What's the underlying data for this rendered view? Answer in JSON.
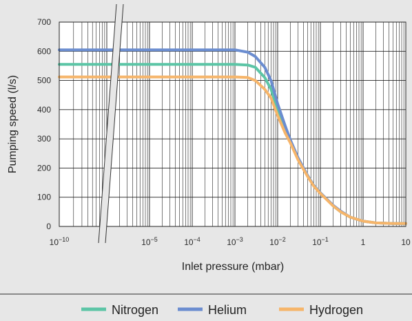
{
  "chart_data": {
    "type": "line",
    "xlabel": "Inlet pressure (mbar)",
    "ylabel": "Pumping speed (l/s)",
    "x_scale": "log",
    "x_axis_break": true,
    "xlim": [
      1e-10,
      10
    ],
    "ylim": [
      0,
      700
    ],
    "y_ticks": [
      0,
      100,
      200,
      300,
      400,
      500,
      600,
      700
    ],
    "y_tick_labels": [
      "0",
      "100",
      "200",
      "300",
      "400",
      "500",
      "600",
      "700"
    ],
    "x_tick_labels": [
      {
        "value": 1e-10,
        "base": "10",
        "exp": "−10"
      },
      {
        "value": 1e-05,
        "base": "10",
        "exp": "−5"
      },
      {
        "value": 0.0001,
        "base": "10",
        "exp": "−4"
      },
      {
        "value": 0.001,
        "base": "10",
        "exp": "−3"
      },
      {
        "value": 0.01,
        "base": "10",
        "exp": "−2"
      },
      {
        "value": 0.1,
        "base": "10",
        "exp": "−1"
      },
      {
        "value": 1,
        "base": "1",
        "exp": ""
      },
      {
        "value": 10,
        "base": "10",
        "exp": ""
      }
    ],
    "grid": true,
    "legend_position": "bottom",
    "series": [
      {
        "name": "Nitrogen",
        "color": "#5cc5a6",
        "plateau": 555,
        "x": [
          1e-10,
          0.001,
          0.002,
          0.003,
          0.005,
          0.007,
          0.01,
          0.015,
          0.02,
          0.03,
          0.05,
          0.07,
          0.1,
          0.2,
          0.3,
          0.5,
          0.7,
          1,
          2,
          5,
          10
        ],
        "y": [
          555,
          555,
          553,
          545,
          510,
          470,
          400,
          330,
          290,
          230,
          175,
          140,
          115,
          70,
          50,
          32,
          25,
          18,
          12,
          10,
          10
        ]
      },
      {
        "name": "Helium",
        "color": "#6b8dd0",
        "plateau": 605,
        "x": [
          1e-10,
          0.001,
          0.002,
          0.003,
          0.005,
          0.007,
          0.01,
          0.015,
          0.02,
          0.03,
          0.05,
          0.07,
          0.1,
          0.2,
          0.3,
          0.5,
          0.7,
          1,
          2,
          5,
          10
        ],
        "y": [
          605,
          605,
          597,
          582,
          545,
          500,
          420,
          345,
          295,
          235,
          175,
          140,
          115,
          72,
          52,
          32,
          25,
          18,
          12,
          10,
          10
        ]
      },
      {
        "name": "Hydrogen",
        "color": "#f6b56a",
        "plateau": 512,
        "x": [
          1e-10,
          0.001,
          0.002,
          0.003,
          0.005,
          0.007,
          0.01,
          0.015,
          0.02,
          0.03,
          0.05,
          0.07,
          0.1,
          0.2,
          0.3,
          0.5,
          0.7,
          1,
          2,
          5,
          10
        ],
        "y": [
          512,
          512,
          510,
          500,
          470,
          440,
          380,
          320,
          285,
          228,
          172,
          138,
          113,
          70,
          50,
          32,
          25,
          18,
          12,
          10,
          10
        ]
      }
    ]
  }
}
